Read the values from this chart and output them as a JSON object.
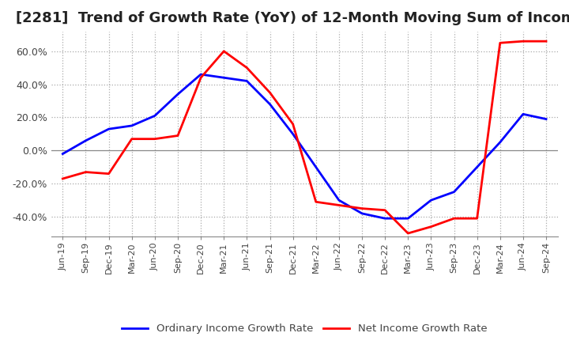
{
  "title": "[2281]  Trend of Growth Rate (YoY) of 12-Month Moving Sum of Incomes",
  "title_fontsize": 13,
  "ylim": [
    -0.52,
    0.72
  ],
  "yticks": [
    -0.4,
    -0.2,
    0.0,
    0.2,
    0.4,
    0.6
  ],
  "background_color": "#ffffff",
  "grid_color": "#aaaaaa",
  "legend_labels": [
    "Ordinary Income Growth Rate",
    "Net Income Growth Rate"
  ],
  "legend_colors": [
    "#0000ff",
    "#ff0000"
  ],
  "x_labels": [
    "Jun-19",
    "Sep-19",
    "Dec-19",
    "Mar-20",
    "Jun-20",
    "Sep-20",
    "Dec-20",
    "Mar-21",
    "Jun-21",
    "Sep-21",
    "Dec-21",
    "Mar-22",
    "Jun-22",
    "Sep-22",
    "Dec-22",
    "Mar-23",
    "Jun-23",
    "Sep-23",
    "Dec-23",
    "Mar-24",
    "Jun-24",
    "Sep-24"
  ],
  "ordinary_income": [
    -0.02,
    0.06,
    0.13,
    0.15,
    0.21,
    0.34,
    0.46,
    0.44,
    0.42,
    0.28,
    0.1,
    -0.1,
    -0.3,
    -0.38,
    -0.41,
    -0.41,
    -0.3,
    -0.25,
    -0.1,
    0.05,
    0.22,
    0.19
  ],
  "net_income": [
    -0.17,
    -0.13,
    -0.14,
    0.07,
    0.07,
    0.09,
    0.44,
    0.6,
    0.5,
    0.35,
    0.16,
    -0.31,
    -0.33,
    -0.35,
    -0.36,
    -0.5,
    -0.46,
    -0.41,
    -0.41,
    0.65,
    0.66,
    0.66
  ]
}
